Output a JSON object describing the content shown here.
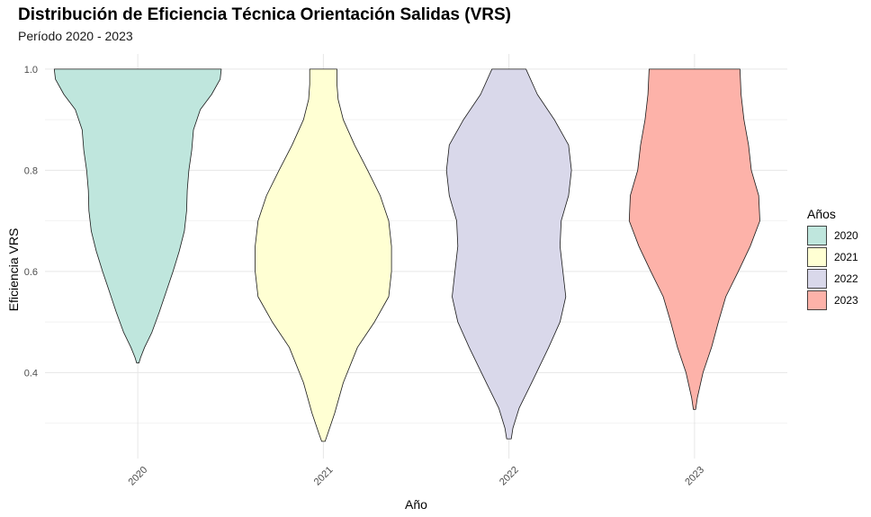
{
  "chart_data": {
    "type": "violin",
    "title": "Distribución de Eficiencia Técnica Orientación Salidas (VRS)",
    "subtitle": "Período 2020 - 2023",
    "xlabel": "Año",
    "ylabel": "Eficiencia VRS",
    "categories": [
      "2020",
      "2021",
      "2022",
      "2023"
    ],
    "ylim": [
      0.23,
      1.03
    ],
    "yticks": [
      0.4,
      0.6,
      0.8,
      1.0
    ],
    "ytick_labels": [
      "0.4",
      "0.6",
      "0.8",
      "1.0"
    ],
    "grid": true,
    "legend": {
      "title": "Años",
      "position": "right",
      "entries": [
        "2020",
        "2021",
        "2022",
        "2023"
      ]
    },
    "colors": [
      "#bfe6dd",
      "#ffffd3",
      "#d9d8ea",
      "#fdb2a9"
    ],
    "series": [
      {
        "name": "2020",
        "min": 0.419,
        "max": 1.0,
        "density": [
          [
            0.419,
            0.02
          ],
          [
            0.43,
            0.05
          ],
          [
            0.45,
            0.12
          ],
          [
            0.48,
            0.25
          ],
          [
            0.52,
            0.38
          ],
          [
            0.56,
            0.5
          ],
          [
            0.6,
            0.62
          ],
          [
            0.64,
            0.73
          ],
          [
            0.68,
            0.82
          ],
          [
            0.72,
            0.86
          ],
          [
            0.76,
            0.87
          ],
          [
            0.8,
            0.9
          ],
          [
            0.84,
            0.95
          ],
          [
            0.88,
            0.98
          ],
          [
            0.92,
            1.1
          ],
          [
            0.95,
            1.3
          ],
          [
            0.98,
            1.45
          ],
          [
            1.0,
            1.47
          ]
        ]
      },
      {
        "name": "2021",
        "min": 0.264,
        "max": 1.0,
        "density": [
          [
            0.264,
            0.03
          ],
          [
            0.28,
            0.08
          ],
          [
            0.32,
            0.2
          ],
          [
            0.38,
            0.35
          ],
          [
            0.45,
            0.6
          ],
          [
            0.5,
            0.9
          ],
          [
            0.55,
            1.15
          ],
          [
            0.6,
            1.2
          ],
          [
            0.65,
            1.2
          ],
          [
            0.7,
            1.15
          ],
          [
            0.75,
            1.0
          ],
          [
            0.8,
            0.78
          ],
          [
            0.85,
            0.55
          ],
          [
            0.9,
            0.35
          ],
          [
            0.94,
            0.26
          ],
          [
            0.97,
            0.24
          ],
          [
            1.0,
            0.24
          ]
        ]
      },
      {
        "name": "2022",
        "min": 0.269,
        "max": 1.0,
        "density": [
          [
            0.269,
            0.04
          ],
          [
            0.29,
            0.07
          ],
          [
            0.33,
            0.18
          ],
          [
            0.38,
            0.4
          ],
          [
            0.45,
            0.7
          ],
          [
            0.5,
            0.9
          ],
          [
            0.55,
            1.0
          ],
          [
            0.6,
            0.95
          ],
          [
            0.65,
            0.9
          ],
          [
            0.7,
            0.92
          ],
          [
            0.75,
            1.05
          ],
          [
            0.8,
            1.1
          ],
          [
            0.85,
            1.05
          ],
          [
            0.9,
            0.8
          ],
          [
            0.95,
            0.5
          ],
          [
            1.0,
            0.3
          ]
        ]
      },
      {
        "name": "2023",
        "min": 0.327,
        "max": 1.0,
        "density": [
          [
            0.327,
            0.02
          ],
          [
            0.35,
            0.05
          ],
          [
            0.4,
            0.15
          ],
          [
            0.45,
            0.3
          ],
          [
            0.5,
            0.42
          ],
          [
            0.55,
            0.55
          ],
          [
            0.6,
            0.77
          ],
          [
            0.65,
            0.98
          ],
          [
            0.7,
            1.15
          ],
          [
            0.75,
            1.13
          ],
          [
            0.8,
            1.0
          ],
          [
            0.85,
            0.95
          ],
          [
            0.9,
            0.87
          ],
          [
            0.95,
            0.82
          ],
          [
            1.0,
            0.8
          ]
        ]
      }
    ]
  }
}
